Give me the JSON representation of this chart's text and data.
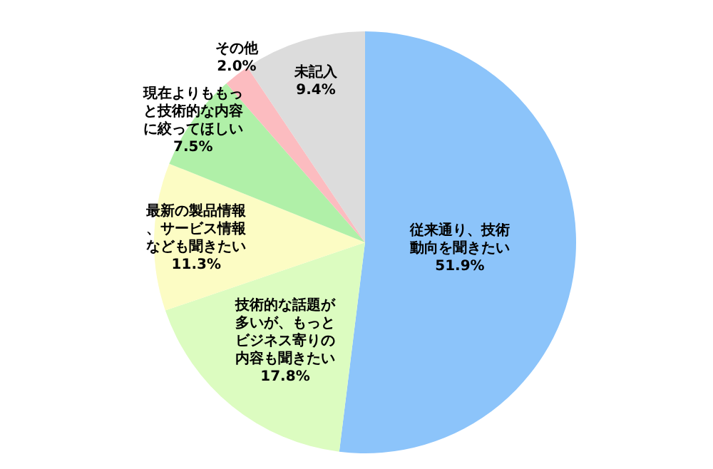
{
  "chart_data": {
    "type": "pie",
    "categories": [
      "従来通り、技術動向を聞きたい",
      "技術的な話題が多いが、もっとビジネス寄りの内容も聞きたい",
      "最新の製品情報、サービス情報なども聞きたい",
      "現在よりももっと技術的な内容に絞ってほしい",
      "その他",
      "未記入"
    ],
    "values": [
      51.9,
      17.8,
      11.3,
      7.5,
      2.0,
      9.4
    ],
    "value_labels": [
      "51.9%",
      "17.8%",
      "11.3%",
      "7.5%",
      "2.0%",
      "9.4%"
    ],
    "colors": [
      "#8cc4fa",
      "#dcfcc0",
      "#fcfcc4",
      "#b0f0a8",
      "#fcbcc0",
      "#dcdcdc"
    ],
    "legend": false
  }
}
